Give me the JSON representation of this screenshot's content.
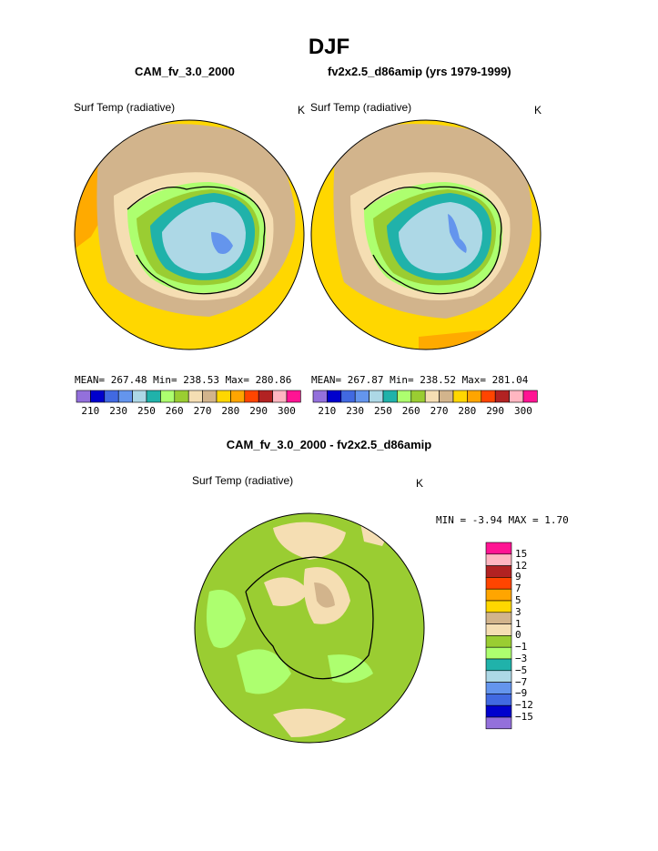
{
  "page": {
    "title": "DJF",
    "left_subtitle": "CAM_fv_3.0_2000",
    "right_subtitle": "fv2x2.5_d86amip (yrs 1979-1999)",
    "diff_title": "CAM_fv_3.0_2000 - fv2x2.5_d86amip"
  },
  "left_map": {
    "variable": "Surf Temp (radiative)",
    "units": "K",
    "stats": "MEAN= 267.48   Min= 238.53   Max= 280.86"
  },
  "right_map": {
    "variable": "Surf Temp (radiative)",
    "units": "K",
    "stats": "MEAN= 267.87   Min= 238.52   Max= 281.04"
  },
  "abs_colorbar": {
    "colors": [
      "#9370DB",
      "#0000CD",
      "#4169E1",
      "#6495ED",
      "#ADD8E6",
      "#20B2AA",
      "#ADFF6F",
      "#9ACD32",
      "#F5DEB3",
      "#D2B48C",
      "#FFD700",
      "#FFA500",
      "#FF4500",
      "#B22222",
      "#FFB6C1",
      "#FF1493"
    ],
    "labels": [
      "210",
      "230",
      "250",
      "260",
      "270",
      "280",
      "290",
      "300"
    ]
  },
  "diff_map": {
    "variable": "Surf Temp (radiative)",
    "units": "K",
    "minmax": "MIN =  -3.94  MAX =    1.70"
  },
  "diff_colorbar": {
    "colors": [
      "#FF1493",
      "#FFB6C1",
      "#B22222",
      "#FF4500",
      "#FFA500",
      "#FFD700",
      "#D2B48C",
      "#F5DEB3",
      "#9ACD32",
      "#ADFF6F",
      "#20B2AA",
      "#ADD8E6",
      "#6495ED",
      "#4169E1",
      "#0000CD",
      "#9370DB"
    ],
    "labels": [
      "15",
      "12",
      "9",
      "7",
      "5",
      "3",
      "1",
      "0",
      "−1",
      "−3",
      "−5",
      "−7",
      "−9",
      "−12",
      "−15"
    ]
  }
}
